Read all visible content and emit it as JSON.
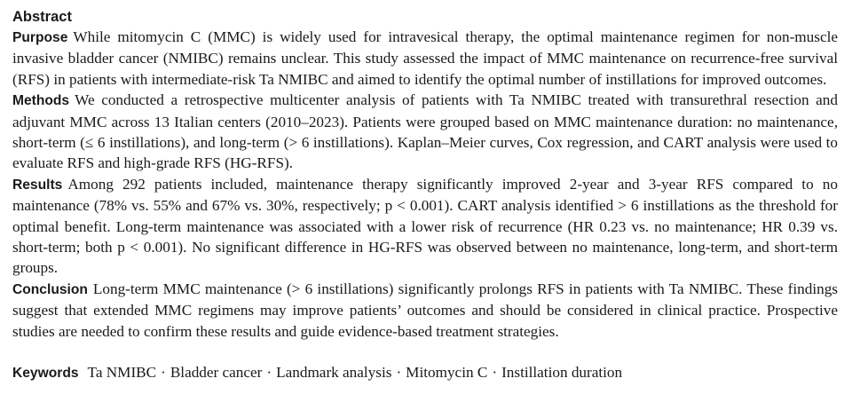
{
  "abstract_heading": "Abstract",
  "sections": [
    {
      "label": "Purpose",
      "text": "While mitomycin C (MMC) is widely used for intravesical therapy, the optimal maintenance regimen for non-muscle invasive bladder cancer (NMIBC) remains unclear. This study assessed the impact of MMC maintenance on recurrence-free survival (RFS) in patients with intermediate-risk Ta NMIBC and aimed to identify the optimal number of instillations for improved outcomes."
    },
    {
      "label": "Methods",
      "text": "We conducted a retrospective multicenter analysis of patients with Ta NMIBC treated with transurethral resection and adjuvant MMC across 13 Italian centers (2010–2023). Patients were grouped based on MMC maintenance duration: no maintenance, short-term (≤ 6 instillations), and long-term (> 6 instillations). Kaplan–Meier curves, Cox regression, and CART analysis were used to evaluate RFS and high-grade RFS (HG-RFS)."
    },
    {
      "label": "Results",
      "text": "Among 292 patients included, maintenance therapy significantly improved 2-year and 3-year RFS compared to no maintenance (78% vs. 55% and 67% vs. 30%, respectively; p < 0.001). CART analysis identified > 6 instillations as the threshold for optimal benefit. Long-term maintenance was associated with a lower risk of recurrence (HR 0.23 vs. no maintenance; HR 0.39 vs. short-term; both p < 0.001). No significant difference in HG-RFS was observed between no maintenance, long-term, and short-term groups."
    },
    {
      "label": "Conclusion",
      "text": "Long-term MMC maintenance (> 6 instillations) significantly prolongs RFS in patients with Ta NMIBC. These findings suggest that extended MMC regimens may improve patients’ outcomes and should be considered in clinical practice. Prospective studies are needed to confirm these results and guide evidence-based treatment strategies."
    }
  ],
  "keywords": {
    "label": "Keywords",
    "separator": "·",
    "items": [
      "Ta NMIBC",
      "Bladder cancer",
      "Landmark analysis",
      "Mitomycin C",
      "Instillation duration"
    ]
  }
}
